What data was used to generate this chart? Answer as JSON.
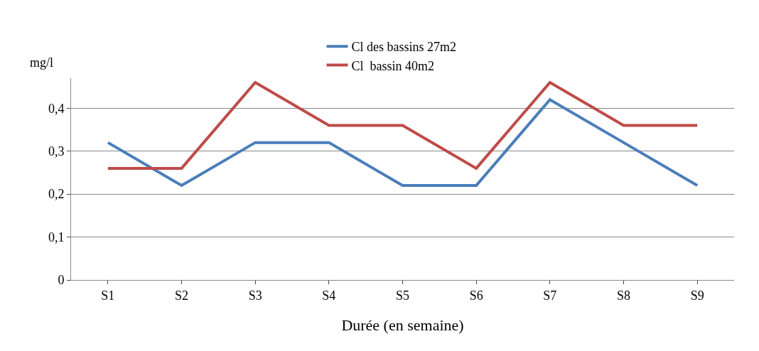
{
  "chart_data": {
    "type": "line",
    "xlabel": "Durée (en semaine)",
    "ylabel": "mg/l",
    "categories": [
      "S1",
      "S2",
      "S3",
      "S4",
      "S5",
      "S6",
      "S7",
      "S8",
      "S9"
    ],
    "series": [
      {
        "name": "Cl des bassins 27m2",
        "color": "#4a7ebb",
        "values": [
          0.32,
          0.22,
          0.32,
          0.32,
          0.22,
          0.22,
          0.42,
          0.32,
          0.22
        ]
      },
      {
        "name": "Cl  bassin 40m2",
        "color": "#be4b48",
        "values": [
          0.26,
          0.26,
          0.46,
          0.36,
          0.36,
          0.26,
          0.46,
          0.36,
          0.36
        ]
      }
    ],
    "ylim": [
      0,
      0.47
    ],
    "yticks": [
      {
        "value": 0,
        "label": "0"
      },
      {
        "value": 0.1,
        "label": "0,1"
      },
      {
        "value": 0.2,
        "label": "0,2"
      },
      {
        "value": 0.3,
        "label": "0,3"
      },
      {
        "value": 0.4,
        "label": "0,4"
      }
    ],
    "grid": "y",
    "legend": "top",
    "marker": "none",
    "line_style": "solid"
  }
}
